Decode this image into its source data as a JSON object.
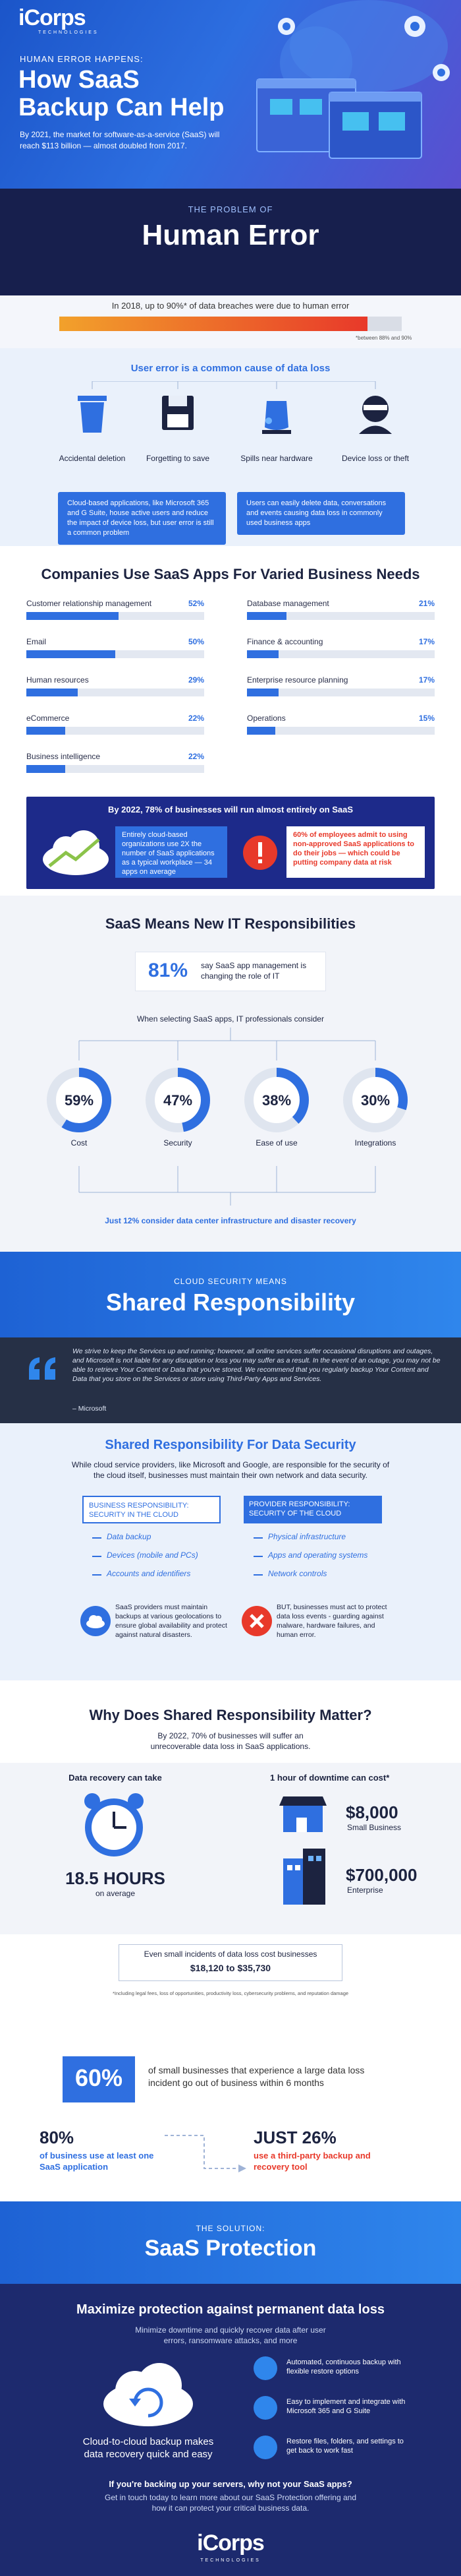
{
  "header": {
    "logo": "iCorps",
    "logo_sub": "TECHNOLOGIES",
    "kicker": "HUMAN ERROR HAPPENS:",
    "title": "How SaaS Backup Can Help",
    "intro": "By 2021, the market for software-as-a-service (SaaS) will reach $113 billion — almost doubled from 2017."
  },
  "problem": {
    "kicker": "THE PROBLEM OF",
    "title": "Human Error",
    "statement": "In 2018, up to 90%* of data breaches were due to human error",
    "bar_value": 90,
    "footnote": "*between 88% and 90%"
  },
  "user_error": {
    "title": "User error is a common cause of data loss",
    "causes": [
      "Accidental deletion",
      "Forgetting to save",
      "Spills near hardware",
      "Device loss or theft"
    ],
    "notes": [
      "Cloud-based applications, like Microsoft 365 and G Suite, house active users and reduce the impact of device loss, but user error is still a common problem",
      "Users can easily delete data, conversations and events causing data loss in commonly used business apps"
    ]
  },
  "apps": {
    "title": "Companies Use SaaS Apps For Varied Business Needs",
    "items": [
      {
        "name": "Customer relationship management",
        "value": 52,
        "label": "52%"
      },
      {
        "name": "Email",
        "value": 50,
        "label": "50%"
      },
      {
        "name": "Human resources",
        "value": 29,
        "label": "29%"
      },
      {
        "name": "eCommerce",
        "value": 22,
        "label": "22%"
      },
      {
        "name": "Business intelligence",
        "value": 22,
        "label": "22%"
      },
      {
        "name": "Database management",
        "value": 21,
        "label": "21%"
      },
      {
        "name": "Finance & accounting",
        "value": 17,
        "label": "17%"
      },
      {
        "name": "Enterprise resource planning",
        "value": 17,
        "label": "17%"
      },
      {
        "name": "Operations",
        "value": 15,
        "label": "15%"
      }
    ]
  },
  "saas_2022": {
    "title": "By 2022, 78% of businesses will run almost entirely on SaaS",
    "left": "Entirely cloud-based organizations use 2X the number of SaaS applications as a typical workplace — 34 apps on average",
    "right": "60% of employees admit to using non-approved SaaS applications to do their jobs — which could be putting company data at risk"
  },
  "it": {
    "title": "SaaS Means New IT Responsibilities",
    "stat": "81%",
    "stat_text": "say SaaS app management is changing the role of IT",
    "consider": "When selecting SaaS apps, IT professionals consider",
    "factors": [
      {
        "name": "Cost",
        "value": 59,
        "label": "59%"
      },
      {
        "name": "Security",
        "value": 47,
        "label": "47%"
      },
      {
        "name": "Ease of use",
        "value": 38,
        "label": "38%"
      },
      {
        "name": "Integrations",
        "value": 30,
        "label": "30%"
      }
    ],
    "footer": "Just 12% consider data center infrastructure and disaster recovery"
  },
  "shared": {
    "kicker": "CLOUD SECURITY MEANS",
    "title": "Shared Responsibility",
    "quote": "We strive to keep the Services up and running; however, all online services suffer occasional disruptions and outages, and Microsoft is not liable for any disruption or loss you may suffer as a result. In the event of an outage, you may not be able to retrieve Your Content or Data that you've stored. We recommend that you regularly backup Your Content and Data that you store on the Services or store using Third-Party Apps and Services.",
    "quote_source": "– Microsoft"
  },
  "security": {
    "title": "Shared Responsibility For Data Security",
    "intro": "While cloud service providers, like Microsoft and Google, are responsible for the security of the cloud itself, businesses must maintain their own network and data security.",
    "business": {
      "heading": "BUSINESS RESPONSIBILITY:",
      "sub": "SECURITY IN THE CLOUD",
      "items": [
        "Data backup",
        "Devices (mobile and PCs)",
        "Accounts and identifiers"
      ]
    },
    "provider": {
      "heading": "PROVIDER RESPONSIBILITY:",
      "sub": "SECURITY OF THE CLOUD",
      "items": [
        "Physical infrastructure",
        "Apps and operating systems",
        "Network controls"
      ]
    },
    "notes": [
      "SaaS providers must maintain backups at various geolocations to ensure global availability and protect against natural disasters.",
      "BUT, businesses must act to protect data loss events - guarding against malware, hardware failures, and human error."
    ]
  },
  "why": {
    "title": "Why Does Shared Responsibility Matter?",
    "intro": "By 2022, 70% of businesses will suffer an unrecoverable data loss in SaaS applications.",
    "recovery_label": "Data recovery can take",
    "recovery_value": "18.5 HOURS",
    "recovery_sub": "on average",
    "downtime_label": "1 hour of downtime can cost*",
    "costs": [
      {
        "value": "$8,000",
        "label": "Small Business"
      },
      {
        "value": "$700,000",
        "label": "Enterprise"
      }
    ],
    "incident_text": "Even small incidents of data loss cost businesses",
    "incident_range": "$18,120 to $35,730",
    "footnote": "*Including legal fees, loss of opportunities, productivity loss, cybersecurity problems, and reputation damage"
  },
  "closure": {
    "stat": "60%",
    "text": "of small businesses that experience a large data loss incident go out of business within 6 months"
  },
  "backup": {
    "left_stat": "80%",
    "left_text": "of business use at least one SaaS application",
    "right_stat": "JUST 26%",
    "right_text": "use a third-party backup and recovery tool"
  },
  "solution": {
    "kicker": "THE SOLUTION:",
    "title": "SaaS Protection"
  },
  "protect": {
    "title": "Maximize protection against permanent data loss",
    "intro": "Minimize downtime and quickly recover data after user errors, ransomware attacks, and more",
    "cloud_text": "Cloud-to-cloud backup makes data recovery quick and easy",
    "features": [
      "Automated, continuous backup with flexible restore options",
      "Easy to implement and integrate with Microsoft 365 and G Suite",
      "Restore files, folders, and settings to get back to work fast"
    ],
    "cta_question": "If you're backing up your servers, why not your SaaS apps?",
    "cta_text": "Get in touch today to learn more about our SaaS Protection offering and how it can protect your critical business data."
  },
  "footer": {
    "logo": "iCorps",
    "logo_sub": "TECHNOLOGIES"
  }
}
